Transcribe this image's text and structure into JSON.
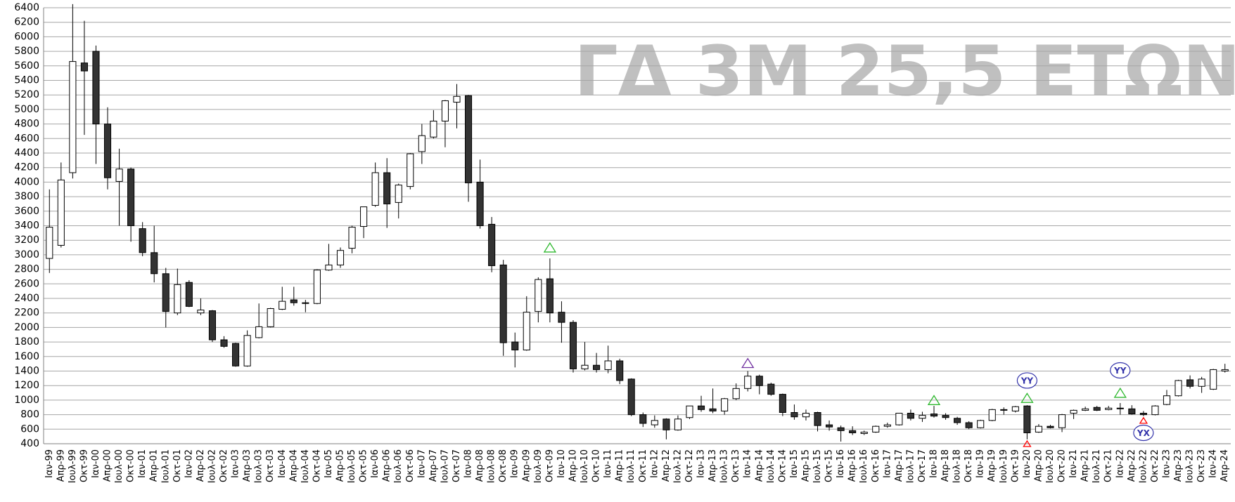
{
  "chart_data": {
    "type": "candlestick",
    "title": "ΓΔ 3Μ 25,5 ΕΤΩΝ",
    "categories": [
      "Ιαν-99",
      "Απρ-99",
      "Ιουλ-99",
      "Οκτ-99",
      "Ιαν-00",
      "Απρ-00",
      "Ιουλ-00",
      "Οκτ-00",
      "Ιαν-01",
      "Απρ-01",
      "Ιουλ-01",
      "Οκτ-01",
      "Ιαν-02",
      "Απρ-02",
      "Ιουλ-02",
      "Οκτ-02",
      "Ιαν-03",
      "Απρ-03",
      "Ιουλ-03",
      "Οκτ-03",
      "Ιαν-04",
      "Απρ-04",
      "Ιουλ-04",
      "Οκτ-04",
      "Ιαν-05",
      "Απρ-05",
      "Ιουλ-05",
      "Οκτ-05",
      "Ιαν-06",
      "Απρ-06",
      "Ιουλ-06",
      "Οκτ-06",
      "Ιαν-07",
      "Απρ-07",
      "Ιουλ-07",
      "Οκτ-07",
      "Ιαν-08",
      "Απρ-08",
      "Ιουλ-08",
      "Οκτ-08",
      "Ιαν-09",
      "Απρ-09",
      "Ιουλ-09",
      "Οκτ-09",
      "Ιαν-10",
      "Απρ-10",
      "Ιουλ-10",
      "Οκτ-10",
      "Ιαν-11",
      "Απρ-11",
      "Ιουλ-11",
      "Οκτ-11",
      "Ιαν-12",
      "Απρ-12",
      "Ιουλ-12",
      "Οκτ-12",
      "Ιαν-13",
      "Απρ-13",
      "Ιουλ-13",
      "Οκτ-13",
      "Ιαν-14",
      "Απρ-14",
      "Ιουλ-14",
      "Οκτ-14",
      "Ιαν-15",
      "Απρ-15",
      "Ιουλ-15",
      "Οκτ-15",
      "Ιαν-16",
      "Απρ-16",
      "Ιουλ-16",
      "Οκτ-16",
      "Ιαν-17",
      "Απρ-17",
      "Ιουλ-17",
      "Οκτ-17",
      "Ιαν-18",
      "Απρ-18",
      "Ιουλ-18",
      "Οκτ-18",
      "Ιαν-19",
      "Απρ-19",
      "Ιουλ-19",
      "Οκτ-19",
      "Ιαν-20",
      "Απρ-20",
      "Ιουλ-20",
      "Οκτ-20",
      "Ιαν-21",
      "Απρ-21",
      "Ιουλ-21",
      "Οκτ-21",
      "Ιαν-22",
      "Απρ-22",
      "Ιουλ-22",
      "Οκτ-22",
      "Ιαν-23",
      "Απρ-23",
      "Ιουλ-23",
      "Οκτ-23",
      "Ιαν-24",
      "Απρ-24"
    ],
    "open": [
      2950,
      3130,
      4130,
      5640,
      5800,
      4800,
      4010,
      4180,
      3360,
      3030,
      2740,
      2200,
      2620,
      2200,
      2230,
      1830,
      1780,
      1470,
      1860,
      2010,
      2250,
      2380,
      2340,
      2330,
      2790,
      2860,
      3090,
      3390,
      3680,
      4130,
      3720,
      3940,
      4420,
      4620,
      4840,
      5100,
      5190,
      4000,
      3420,
      2860,
      1800,
      1690,
      2220,
      2670,
      2210,
      2070,
      1430,
      1480,
      1420,
      1540,
      1290,
      800,
      660,
      740,
      590,
      760,
      920,
      880,
      850,
      1020,
      1160,
      1330,
      1220,
      1080,
      830,
      770,
      830,
      660,
      620,
      580,
      540,
      560,
      640,
      660,
      820,
      750,
      810,
      790,
      750,
      690,
      620,
      720,
      860,
      850,
      920,
      560,
      640,
      620,
      820,
      860,
      900,
      870,
      890,
      880,
      820,
      800,
      940,
      1060,
      1280,
      1190,
      1150,
      1400
    ],
    "high": [
      3900,
      4270,
      6450,
      6220,
      5880,
      5030,
      4460,
      4200,
      3450,
      3400,
      2820,
      2810,
      2650,
      2400,
      2240,
      1880,
      1790,
      1960,
      2330,
      2270,
      2560,
      2560,
      2380,
      2800,
      3150,
      3100,
      3400,
      3660,
      4270,
      4330,
      3980,
      4400,
      4800,
      4990,
      5130,
      5350,
      5200,
      4310,
      3520,
      2930,
      1930,
      2430,
      2690,
      2950,
      2360,
      2100,
      1800,
      1650,
      1750,
      1570,
      1300,
      830,
      790,
      750,
      790,
      920,
      1060,
      1160,
      1030,
      1230,
      1400,
      1350,
      1240,
      1090,
      940,
      870,
      840,
      720,
      650,
      640,
      580,
      650,
      690,
      820,
      870,
      840,
      920,
      820,
      770,
      710,
      730,
      880,
      900,
      920,
      930,
      670,
      660,
      810,
      870,
      910,
      920,
      920,
      960,
      930,
      850,
      930,
      1140,
      1280,
      1340,
      1320,
      1430,
      1500
    ],
    "low": [
      2750,
      3100,
      4050,
      4650,
      4250,
      3900,
      3400,
      3180,
      2980,
      2620,
      2000,
      2170,
      2280,
      2170,
      1800,
      1720,
      1460,
      1460,
      1850,
      2000,
      2240,
      2300,
      2210,
      2320,
      2780,
      2820,
      3020,
      3230,
      3660,
      3370,
      3500,
      3900,
      4250,
      4600,
      4480,
      4740,
      3730,
      3360,
      2760,
      1610,
      1450,
      1680,
      2070,
      2070,
      1790,
      1380,
      1410,
      1380,
      1370,
      1220,
      780,
      630,
      620,
      460,
      580,
      740,
      840,
      820,
      800,
      1000,
      1120,
      1080,
      1060,
      780,
      730,
      720,
      570,
      580,
      430,
      520,
      520,
      550,
      620,
      650,
      720,
      700,
      760,
      730,
      660,
      600,
      610,
      710,
      800,
      830,
      460,
      550,
      610,
      560,
      740,
      850,
      850,
      860,
      800,
      800,
      780,
      790,
      930,
      1050,
      1160,
      1100,
      1140,
      1380
    ],
    "close": [
      3380,
      4030,
      5660,
      5530,
      4800,
      4060,
      4180,
      3400,
      3030,
      2740,
      2220,
      2590,
      2290,
      2240,
      1830,
      1740,
      1470,
      1890,
      2010,
      2260,
      2360,
      2340,
      2330,
      2790,
      2860,
      3060,
      3380,
      3660,
      4130,
      3700,
      3960,
      4390,
      4640,
      4840,
      5120,
      5180,
      3990,
      3400,
      2850,
      1790,
      1690,
      2210,
      2660,
      2200,
      2070,
      1430,
      1480,
      1420,
      1540,
      1270,
      800,
      680,
      720,
      590,
      740,
      920,
      870,
      850,
      1020,
      1160,
      1330,
      1200,
      1080,
      830,
      770,
      820,
      650,
      630,
      580,
      550,
      560,
      640,
      660,
      820,
      750,
      790,
      780,
      760,
      690,
      620,
      720,
      870,
      870,
      910,
      550,
      640,
      620,
      800,
      860,
      880,
      860,
      890,
      880,
      810,
      800,
      920,
      1060,
      1270,
      1190,
      1290,
      1420,
      1420
    ],
    "up_color": "#ffffff",
    "down_color": "#333333",
    "ylim": [
      400,
      6400
    ],
    "yticks": [
      400,
      600,
      800,
      1000,
      1200,
      1400,
      1600,
      1800,
      2000,
      2200,
      2400,
      2600,
      2800,
      3000,
      3200,
      3400,
      3600,
      3800,
      4000,
      4200,
      4400,
      4600,
      4800,
      5000,
      5200,
      5400,
      5600,
      5800,
      6000,
      6200,
      6400
    ],
    "grid": true,
    "markers": [
      {
        "x": "Οκτ-09",
        "y": 3100,
        "color": "#2eb82e",
        "direction": "up"
      },
      {
        "x": "Ιαν-14",
        "y": 1510,
        "color": "#7030a0",
        "direction": "up"
      },
      {
        "x": "Ιαν-18",
        "y": 1000,
        "color": "#2eb82e",
        "direction": "up"
      },
      {
        "x": "Ιαν-20",
        "y": 1030,
        "color": "#2eb82e",
        "direction": "up"
      },
      {
        "x": "Ιαν-20",
        "y": 400,
        "color": "#ff0000",
        "direction": "up"
      },
      {
        "x": "Ιαν-22",
        "y": 1100,
        "color": "#2eb82e",
        "direction": "up"
      },
      {
        "x": "Ιουλ-22",
        "y": 720,
        "color": "#ff0000",
        "direction": "up"
      }
    ],
    "annotations": [
      {
        "x": "Ιαν-20",
        "y": 1270,
        "text": "YY",
        "color": "#3333aa"
      },
      {
        "x": "Ιαν-22",
        "y": 1410,
        "text": "YY",
        "color": "#3333aa"
      },
      {
        "x": "Ιουλ-22",
        "y": 550,
        "text": "YX",
        "color": "#3333aa"
      }
    ]
  }
}
